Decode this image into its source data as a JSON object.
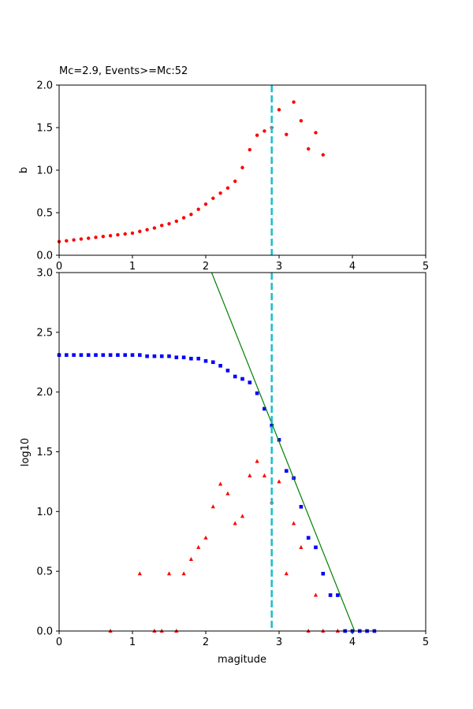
{
  "chart_data": [
    {
      "type": "scatter",
      "title": "Mc=2.9, Events>=Mc:52",
      "xlabel": "",
      "ylabel": "b",
      "xlim": [
        0,
        5
      ],
      "ylim": [
        0,
        2
      ],
      "xticks": [
        "0",
        "1",
        "2",
        "3",
        "4",
        "5"
      ],
      "yticks": [
        "0.0",
        "0.5",
        "1.0",
        "1.5",
        "2.0"
      ],
      "mc_line": {
        "x": 2.9,
        "color": "#17becf",
        "style": "dashed"
      },
      "series": [
        {
          "marker": "circle",
          "color": "#ff0000",
          "x": [
            0.0,
            0.1,
            0.2,
            0.3,
            0.4,
            0.5,
            0.6,
            0.7,
            0.8,
            0.9,
            1.0,
            1.1,
            1.2,
            1.3,
            1.4,
            1.5,
            1.6,
            1.7,
            1.8,
            1.9,
            2.0,
            2.1,
            2.2,
            2.3,
            2.4,
            2.5,
            2.6,
            2.7,
            2.8,
            2.9,
            3.0,
            3.1,
            3.2,
            3.3,
            3.4,
            3.5,
            3.6
          ],
          "y": [
            0.16,
            0.17,
            0.18,
            0.19,
            0.2,
            0.21,
            0.22,
            0.23,
            0.24,
            0.25,
            0.26,
            0.28,
            0.3,
            0.32,
            0.35,
            0.37,
            0.4,
            0.44,
            0.48,
            0.54,
            0.6,
            0.67,
            0.73,
            0.79,
            0.87,
            1.03,
            1.24,
            1.41,
            1.46,
            1.5,
            1.71,
            1.42,
            1.8,
            1.58,
            1.25,
            1.44,
            1.18
          ]
        }
      ]
    },
    {
      "type": "scatter",
      "title": "",
      "xlabel": "magitude",
      "ylabel": "log10",
      "xlim": [
        0,
        5
      ],
      "ylim": [
        0,
        3
      ],
      "xticks": [
        "0",
        "1",
        "2",
        "3",
        "4",
        "5"
      ],
      "yticks": [
        "0.0",
        "0.5",
        "1.0",
        "1.5",
        "2.0",
        "2.5",
        "3.0"
      ],
      "mc_line": {
        "x": 2.9,
        "color": "#17becf",
        "style": "dashed"
      },
      "fit_line": {
        "color": "#008000",
        "x": [
          1.95,
          4.03
        ],
        "y": [
          3.2,
          0.0
        ]
      },
      "series": [
        {
          "marker": "square",
          "color": "#0000ff",
          "x": [
            0.0,
            0.1,
            0.2,
            0.3,
            0.4,
            0.5,
            0.6,
            0.7,
            0.8,
            0.9,
            1.0,
            1.1,
            1.2,
            1.3,
            1.4,
            1.5,
            1.6,
            1.7,
            1.8,
            1.9,
            2.0,
            2.1,
            2.2,
            2.3,
            2.4,
            2.5,
            2.6,
            2.7,
            2.8,
            2.9,
            3.0,
            3.1,
            3.2,
            3.3,
            3.4,
            3.5,
            3.6,
            3.7,
            3.8,
            3.9,
            4.0,
            4.1,
            4.2,
            4.3
          ],
          "y": [
            2.31,
            2.31,
            2.31,
            2.31,
            2.31,
            2.31,
            2.31,
            2.31,
            2.31,
            2.31,
            2.31,
            2.31,
            2.3,
            2.3,
            2.3,
            2.3,
            2.29,
            2.29,
            2.28,
            2.28,
            2.26,
            2.25,
            2.22,
            2.18,
            2.13,
            2.11,
            2.08,
            1.99,
            1.86,
            1.72,
            1.6,
            1.34,
            1.28,
            1.04,
            0.78,
            0.7,
            0.48,
            0.3,
            0.3,
            0.0,
            0.0,
            0.0,
            0.0,
            0.0
          ]
        },
        {
          "marker": "triangle",
          "color": "#ff0000",
          "x": [
            0.7,
            1.1,
            1.3,
            1.4,
            1.5,
            1.6,
            1.7,
            1.8,
            1.9,
            2.0,
            2.1,
            2.2,
            2.3,
            2.4,
            2.5,
            2.6,
            2.7,
            2.8,
            2.9,
            3.0,
            3.1,
            3.2,
            3.3,
            3.4,
            3.5,
            3.6,
            3.8
          ],
          "y": [
            0.0,
            0.48,
            0.0,
            0.0,
            0.48,
            0.0,
            0.48,
            0.6,
            0.7,
            0.78,
            1.04,
            1.23,
            1.15,
            0.9,
            0.96,
            1.3,
            1.42,
            1.3,
            1.08,
            1.25,
            0.48,
            0.9,
            0.7,
            0.0,
            0.3,
            0.0,
            0.0
          ]
        }
      ]
    }
  ]
}
